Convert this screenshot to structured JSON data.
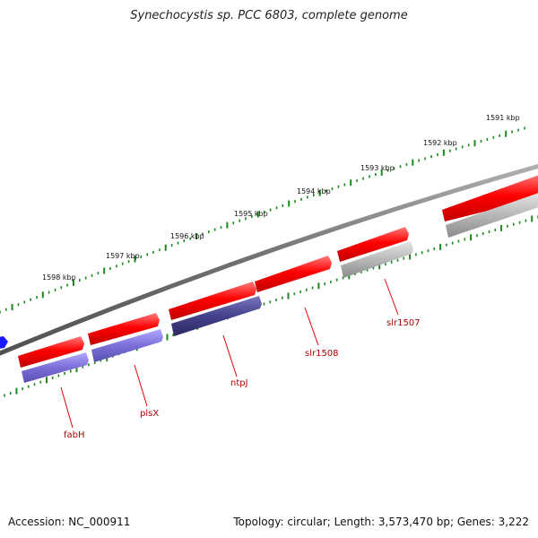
{
  "title": "Synechocystis sp. PCC 6803, complete genome",
  "footer": {
    "accession": "Accession: NC_000911",
    "summary": "Topology: circular; Length: 3,573,470 bp; Genes: 3,222"
  },
  "ruler": {
    "labels": [
      "1598 kbp",
      "1597 kbp",
      "1596 kbp",
      "1595 kbp",
      "1594 kbp",
      "1593 kbp",
      "1592 kbp",
      "1591 kbp"
    ]
  },
  "genes": [
    {
      "name": "fabH",
      "labeled": true
    },
    {
      "name": "plsX",
      "labeled": true
    },
    {
      "name": "ntpJ",
      "labeled": true
    },
    {
      "name": "slr1508",
      "labeled": true
    },
    {
      "name": "slr1507",
      "labeled": true
    },
    {
      "name": "",
      "labeled": false
    }
  ],
  "colors": {
    "feature": "#ee0000",
    "cds_light": "#7b6fd8",
    "cds_dark": "#46418c",
    "cds_grey": "#b8b8b8",
    "backbone": "#808080",
    "ticks": "#1a8a1a",
    "label": "#b00000",
    "marker": "#1a1aff"
  }
}
